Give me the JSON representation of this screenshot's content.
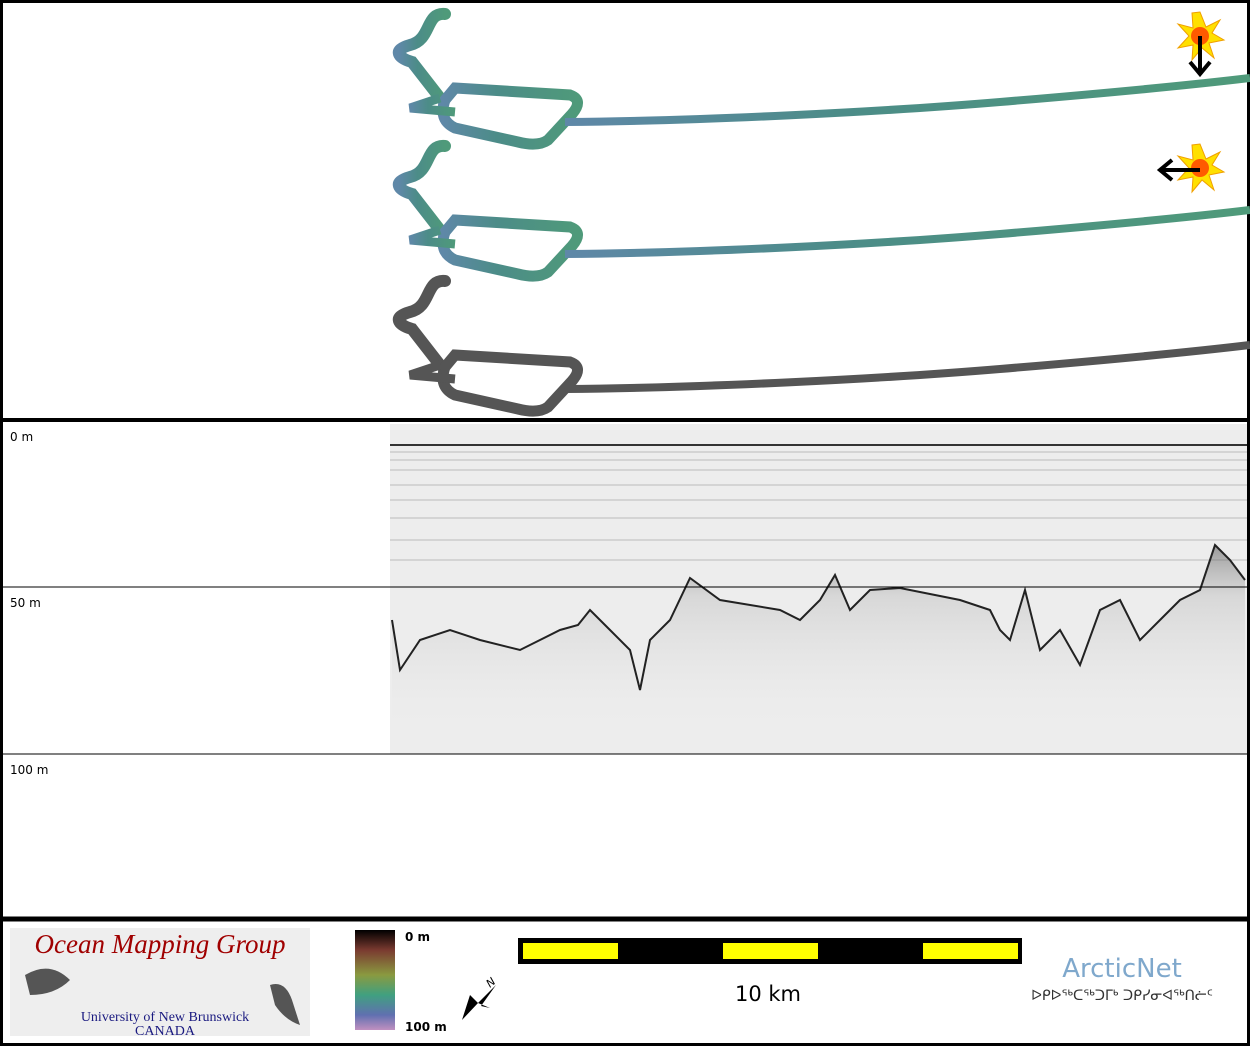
{
  "depth_labels": [
    "0 m",
    "50 m",
    "100 m"
  ],
  "logo": {
    "title": "Ocean Mapping Group",
    "university": "University of New Brunswick",
    "country": "CANADA"
  },
  "colorbar": {
    "top": "0 m",
    "bottom": "100 m"
  },
  "compass": "N",
  "scale_bar": "10 km",
  "partner": {
    "name": "ArcticNet",
    "syllabics": "ᐅᑭᐅᖅᑕᖅᑐᒥᒃ ᑐᑭᓯᓂᐊᖅᑎᓖᑦ"
  }
}
